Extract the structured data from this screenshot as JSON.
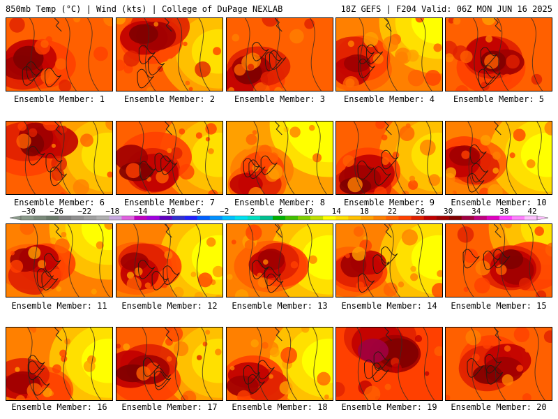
{
  "header": {
    "left": "850mb Temp (°C) | Wind (kts) | College of DuPage NEXLAB",
    "right": "18Z GEFS | F204 Valid: 06Z MON JUN 16 2025"
  },
  "panels": [
    {
      "label": "Ensemble Member: 1",
      "warmth": 0.7,
      "hotspot": "west",
      "cool_corner": "none"
    },
    {
      "label": "Ensemble Member: 2",
      "warmth": 0.72,
      "hotspot": "northwest",
      "cool_corner": "east"
    },
    {
      "label": "Ensemble Member: 3",
      "warmth": 0.78,
      "hotspot": "southwest",
      "cool_corner": "none"
    },
    {
      "label": "Ensemble Member: 4",
      "warmth": 0.55,
      "hotspot": "west",
      "cool_corner": "northeast"
    },
    {
      "label": "Ensemble Member: 5",
      "warmth": 0.68,
      "hotspot": "center",
      "cool_corner": "none"
    },
    {
      "label": "Ensemble Member: 6",
      "warmth": 0.7,
      "hotspot": "northwest",
      "cool_corner": "east"
    },
    {
      "label": "Ensemble Member: 7",
      "warmth": 0.7,
      "hotspot": "west",
      "cool_corner": "east"
    },
    {
      "label": "Ensemble Member: 8",
      "warmth": 0.42,
      "hotspot": "southwest",
      "cool_corner": "northeast"
    },
    {
      "label": "Ensemble Member: 9",
      "warmth": 0.7,
      "hotspot": "southwest",
      "cool_corner": "east"
    },
    {
      "label": "Ensemble Member: 10",
      "warmth": 0.62,
      "hotspot": "west",
      "cool_corner": "east"
    },
    {
      "label": "Ensemble Member: 11",
      "warmth": 0.58,
      "hotspot": "west",
      "cool_corner": "northeast"
    },
    {
      "label": "Ensemble Member: 12",
      "warmth": 0.64,
      "hotspot": "west",
      "cool_corner": "east"
    },
    {
      "label": "Ensemble Member: 13",
      "warmth": 0.62,
      "hotspot": "center",
      "cool_corner": "east"
    },
    {
      "label": "Ensemble Member: 14",
      "warmth": 0.6,
      "hotspot": "west",
      "cool_corner": "east"
    },
    {
      "label": "Ensemble Member: 15",
      "warmth": 0.68,
      "hotspot": "east",
      "cool_corner": "northeast"
    },
    {
      "label": "Ensemble Member: 16",
      "warmth": 0.62,
      "hotspot": "southwest",
      "cool_corner": "east"
    },
    {
      "label": "Ensemble Member: 17",
      "warmth": 0.66,
      "hotspot": "west",
      "cool_corner": "east"
    },
    {
      "label": "Ensemble Member: 18",
      "warmth": 0.62,
      "hotspot": "southwest",
      "cool_corner": "east"
    },
    {
      "label": "Ensemble Member: 19",
      "warmth": 0.86,
      "hotspot": "north",
      "cool_corner": "none"
    },
    {
      "label": "Ensemble Member: 20",
      "warmth": 0.72,
      "hotspot": "center",
      "cool_corner": "none"
    }
  ],
  "colorbar": {
    "labels": [
      "-30",
      "-26",
      "-22",
      "-18",
      "-14",
      "-10",
      "-6",
      "-2",
      "2",
      "6",
      "10",
      "14",
      "18",
      "22",
      "26",
      "30",
      "34",
      "38",
      "42"
    ],
    "colors": [
      "#8a9a8a",
      "#7a8a7a",
      "#6a7a6a",
      "#808080",
      "#909090",
      "#a0a0a0",
      "#b0b0b0",
      "#c8a8e0",
      "#e060e0",
      "#c000c0",
      "#a000e0",
      "#6000c0",
      "#3030d0",
      "#2020ff",
      "#0060ff",
      "#0090ff",
      "#00c0ff",
      "#00e0f0",
      "#00e0c0",
      "#00c090",
      "#00b000",
      "#40c000",
      "#80d000",
      "#c0e000",
      "#ffff00",
      "#ffe000",
      "#ffc000",
      "#ffa000",
      "#ff8000",
      "#ff6000",
      "#ff4000",
      "#e02000",
      "#c00000",
      "#a00000",
      "#800000",
      "#a00040",
      "#c00080",
      "#e000c0",
      "#ff40ff",
      "#ff80ff",
      "#ffc0ff"
    ]
  }
}
